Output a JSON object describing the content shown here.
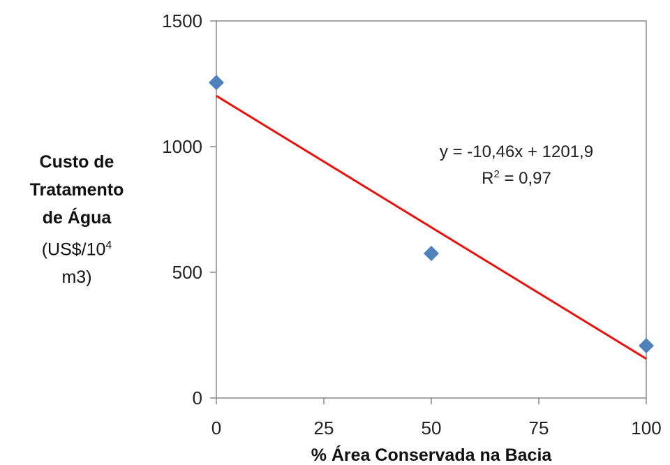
{
  "chart_data": {
    "type": "scatter",
    "xlabel": "%  Área Conservada na Bacia",
    "ylabel_lines": [
      "Custo de",
      "Tratamento",
      "de Água"
    ],
    "ylabel_unit_prefix": "(US$/10",
    "ylabel_unit_sup": "4",
    "ylabel_unit_line2": "m3)",
    "xlim": [
      0,
      100
    ],
    "ylim": [
      0,
      1500
    ],
    "x_ticks": [
      "0",
      "25",
      "50",
      "75",
      "100"
    ],
    "y_ticks": [
      "0",
      "500",
      "1000",
      "1500"
    ],
    "series": [
      {
        "x": [
          0,
          50,
          100
        ],
        "y": [
          1255,
          575,
          208
        ],
        "color": "#4f81bd",
        "marker": "diamond"
      }
    ],
    "trendline": {
      "slope": -10.46,
      "intercept": 1201.9,
      "color": "#e8120c"
    },
    "annotation": {
      "line1": "y = -10,46x + 1201,9",
      "line2_prefix": "R",
      "line2_sup": "2",
      "line2_suffix": " = 0,97"
    },
    "grid": false
  }
}
